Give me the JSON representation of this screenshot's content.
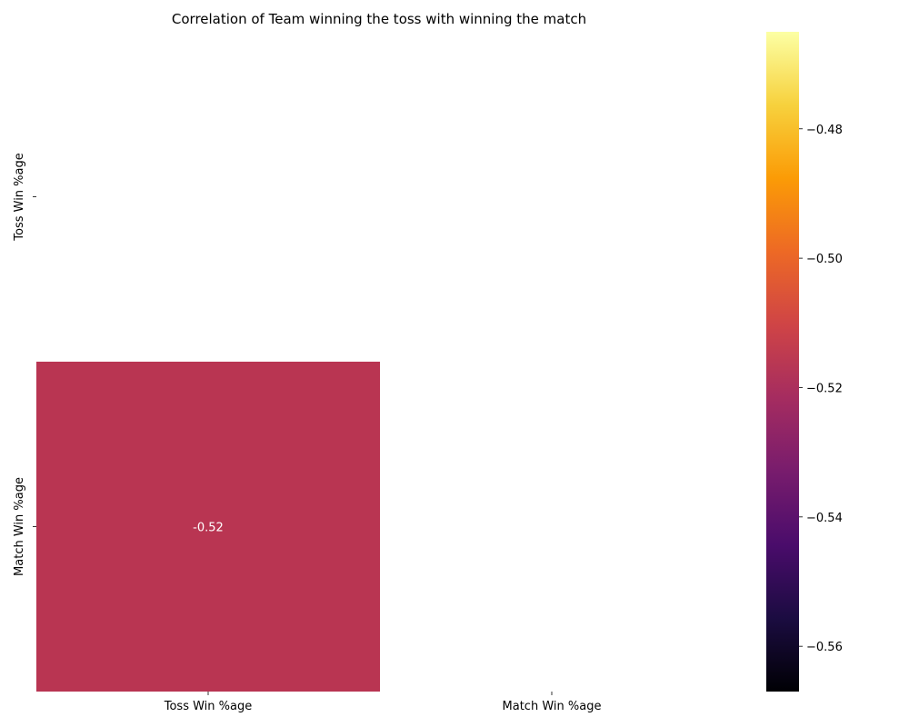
{
  "chart_data": {
    "type": "heatmap",
    "title": "Correlation of Team winning the toss with winning the match",
    "xlabel": "",
    "ylabel": "",
    "x_categories": [
      "Toss Win %age",
      "Match Win %age"
    ],
    "y_categories": [
      "Toss Win %age",
      "Match Win %age"
    ],
    "cells": [
      {
        "row": 1,
        "col": 0,
        "value": -0.52,
        "label": "-0.52"
      }
    ],
    "masked": "upper triangle and diagonal",
    "colormap": "inferno",
    "cell_color": "#b93552",
    "annotation_color": "#ffffff",
    "colorbar": {
      "range": [
        -0.567,
        -0.465
      ],
      "ticks": [
        -0.48,
        -0.5,
        -0.52,
        -0.54,
        -0.56
      ],
      "tick_labels": [
        "−0.48",
        "−0.50",
        "−0.52",
        "−0.54",
        "−0.56"
      ],
      "stops": [
        "#000004",
        "#1b0c41",
        "#4a0c6b",
        "#781c6d",
        "#a52c60",
        "#cf4446",
        "#ed6925",
        "#fb9b06",
        "#f7d13d",
        "#fcffa4"
      ]
    }
  }
}
